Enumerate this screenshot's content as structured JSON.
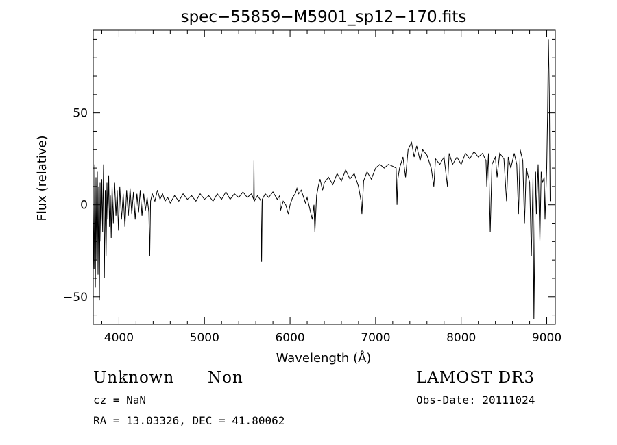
{
  "chart_data": {
    "type": "line",
    "title": "spec−55859−M5901_sp12−170.fits",
    "xlabel": "Wavelength (Å)",
    "ylabel": "Flux (relative)",
    "xlim": [
      3700,
      9100
    ],
    "ylim": [
      -65,
      95
    ],
    "x_ticks": [
      4000,
      5000,
      6000,
      7000,
      8000,
      9000
    ],
    "y_ticks": [
      -50,
      0,
      50
    ],
    "grid": false,
    "series": [
      {
        "color": "#000000",
        "points": [
          [
            3700,
            0
          ],
          [
            3710,
            -35
          ],
          [
            3718,
            22
          ],
          [
            3725,
            -45
          ],
          [
            3732,
            15
          ],
          [
            3740,
            -30
          ],
          [
            3748,
            18
          ],
          [
            3756,
            -38
          ],
          [
            3764,
            10
          ],
          [
            3772,
            -52
          ],
          [
            3780,
            12
          ],
          [
            3790,
            -20
          ],
          [
            3800,
            14
          ],
          [
            3810,
            -15
          ],
          [
            3820,
            22
          ],
          [
            3830,
            -40
          ],
          [
            3840,
            8
          ],
          [
            3850,
            -28
          ],
          [
            3860,
            12
          ],
          [
            3870,
            -8
          ],
          [
            3880,
            16
          ],
          [
            3890,
            -12
          ],
          [
            3900,
            5
          ],
          [
            3910,
            -18
          ],
          [
            3920,
            10
          ],
          [
            3935,
            -10
          ],
          [
            3950,
            12
          ],
          [
            3965,
            -6
          ],
          [
            3980,
            8
          ],
          [
            3995,
            -14
          ],
          [
            4010,
            10
          ],
          [
            4030,
            -8
          ],
          [
            4050,
            6
          ],
          [
            4070,
            -12
          ],
          [
            4090,
            8
          ],
          [
            4110,
            -6
          ],
          [
            4130,
            9
          ],
          [
            4150,
            -5
          ],
          [
            4170,
            7
          ],
          [
            4190,
            -8
          ],
          [
            4210,
            6
          ],
          [
            4230,
            -4
          ],
          [
            4250,
            8
          ],
          [
            4270,
            -6
          ],
          [
            4290,
            6
          ],
          [
            4310,
            -3
          ],
          [
            4330,
            4
          ],
          [
            4350,
            -4
          ],
          [
            4360,
            -28
          ],
          [
            4370,
            2
          ],
          [
            4390,
            6
          ],
          [
            4420,
            2
          ],
          [
            4450,
            8
          ],
          [
            4480,
            3
          ],
          [
            4510,
            6
          ],
          [
            4540,
            2
          ],
          [
            4570,
            4
          ],
          [
            4600,
            1
          ],
          [
            4650,
            5
          ],
          [
            4700,
            2
          ],
          [
            4750,
            6
          ],
          [
            4800,
            3
          ],
          [
            4850,
            5
          ],
          [
            4900,
            2
          ],
          [
            4950,
            6
          ],
          [
            5000,
            3
          ],
          [
            5050,
            5
          ],
          [
            5100,
            2
          ],
          [
            5150,
            6
          ],
          [
            5200,
            3
          ],
          [
            5250,
            7
          ],
          [
            5300,
            3
          ],
          [
            5350,
            6
          ],
          [
            5400,
            4
          ],
          [
            5450,
            7
          ],
          [
            5500,
            4
          ],
          [
            5550,
            6
          ],
          [
            5575,
            3
          ],
          [
            5578,
            24
          ],
          [
            5582,
            2
          ],
          [
            5620,
            5
          ],
          [
            5650,
            3
          ],
          [
            5660,
            2
          ],
          [
            5668,
            -31
          ],
          [
            5675,
            3
          ],
          [
            5710,
            6
          ],
          [
            5750,
            4
          ],
          [
            5800,
            7
          ],
          [
            5850,
            3
          ],
          [
            5880,
            5
          ],
          [
            5890,
            -3
          ],
          [
            5920,
            2
          ],
          [
            5950,
            0
          ],
          [
            5980,
            -5
          ],
          [
            6000,
            0
          ],
          [
            6030,
            4
          ],
          [
            6060,
            6
          ],
          [
            6080,
            9
          ],
          [
            6100,
            6
          ],
          [
            6130,
            8
          ],
          [
            6160,
            4
          ],
          [
            6180,
            1
          ],
          [
            6200,
            4
          ],
          [
            6230,
            -2
          ],
          [
            6260,
            -8
          ],
          [
            6280,
            0
          ],
          [
            6290,
            -15
          ],
          [
            6310,
            5
          ],
          [
            6330,
            10
          ],
          [
            6350,
            14
          ],
          [
            6380,
            8
          ],
          [
            6400,
            12
          ],
          [
            6450,
            15
          ],
          [
            6500,
            11
          ],
          [
            6550,
            17
          ],
          [
            6600,
            13
          ],
          [
            6650,
            19
          ],
          [
            6700,
            14
          ],
          [
            6750,
            17
          ],
          [
            6800,
            10
          ],
          [
            6830,
            2
          ],
          [
            6840,
            -5
          ],
          [
            6860,
            13
          ],
          [
            6900,
            18
          ],
          [
            6950,
            14
          ],
          [
            7000,
            20
          ],
          [
            7050,
            22
          ],
          [
            7100,
            20
          ],
          [
            7150,
            22
          ],
          [
            7200,
            21
          ],
          [
            7240,
            20
          ],
          [
            7250,
            0
          ],
          [
            7260,
            14
          ],
          [
            7280,
            20
          ],
          [
            7320,
            26
          ],
          [
            7350,
            15
          ],
          [
            7380,
            30
          ],
          [
            7420,
            34
          ],
          [
            7450,
            26
          ],
          [
            7480,
            32
          ],
          [
            7520,
            24
          ],
          [
            7550,
            30
          ],
          [
            7600,
            27
          ],
          [
            7650,
            20
          ],
          [
            7680,
            10
          ],
          [
            7700,
            25
          ],
          [
            7750,
            22
          ],
          [
            7800,
            26
          ],
          [
            7840,
            10
          ],
          [
            7860,
            28
          ],
          [
            7900,
            22
          ],
          [
            7950,
            26
          ],
          [
            8000,
            22
          ],
          [
            8050,
            28
          ],
          [
            8100,
            25
          ],
          [
            8150,
            29
          ],
          [
            8200,
            26
          ],
          [
            8250,
            28
          ],
          [
            8290,
            24
          ],
          [
            8300,
            10
          ],
          [
            8320,
            28
          ],
          [
            8340,
            -15
          ],
          [
            8360,
            22
          ],
          [
            8400,
            26
          ],
          [
            8420,
            15
          ],
          [
            8450,
            28
          ],
          [
            8500,
            25
          ],
          [
            8530,
            2
          ],
          [
            8550,
            26
          ],
          [
            8580,
            20
          ],
          [
            8620,
            28
          ],
          [
            8650,
            22
          ],
          [
            8670,
            -5
          ],
          [
            8690,
            30
          ],
          [
            8720,
            24
          ],
          [
            8740,
            -10
          ],
          [
            8760,
            20
          ],
          [
            8800,
            12
          ],
          [
            8820,
            -28
          ],
          [
            8840,
            15
          ],
          [
            8850,
            -62
          ],
          [
            8870,
            18
          ],
          [
            8880,
            -5
          ],
          [
            8900,
            22
          ],
          [
            8920,
            -20
          ],
          [
            8935,
            18
          ],
          [
            8950,
            12
          ],
          [
            8970,
            15
          ],
          [
            8980,
            -8
          ],
          [
            9000,
            20
          ],
          [
            9010,
            50
          ],
          [
            9020,
            90
          ],
          [
            9030,
            60
          ],
          [
            9040,
            2
          ]
        ]
      }
    ]
  },
  "annotations": {
    "object_class": "Unknown",
    "subclass": "Non",
    "cz": "cz = NaN",
    "coords": "RA =  13.03326, DEC =  41.80062",
    "survey": "LAMOST DR3",
    "obs_date": "Obs-Date: 20111024"
  }
}
